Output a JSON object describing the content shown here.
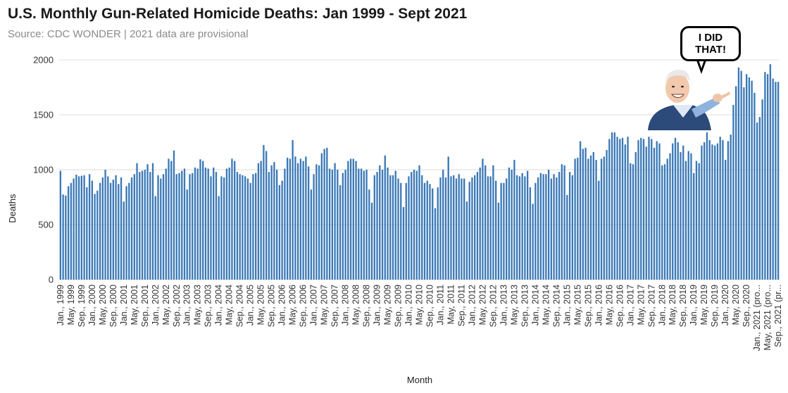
{
  "title": "U.S. Monthly Gun-Related Homicide Deaths: Jan 1999 - Sept 2021",
  "subtitle": "Source: CDC WONDER | 2021 data are provisional",
  "sticker": {
    "text_line1": "I DID",
    "text_line2": "THAT!",
    "icon": "pointing-person-sticker"
  },
  "colors": {
    "bar": "#3a78b6",
    "grid": "#dcdcdc",
    "title": "#1a1a1a",
    "subtitle": "#8a8a8a"
  },
  "chart_data": {
    "type": "bar",
    "title": "U.S. Monthly Gun-Related Homicide Deaths: Jan 1999 - Sept 2021",
    "subtitle": "Source: CDC WONDER | 2021 data are provisional",
    "xlabel": "Month",
    "ylabel": "Deaths",
    "ylim": [
      0,
      2000
    ],
    "yticks": [
      0,
      500,
      1000,
      1500,
      2000
    ],
    "grid": true,
    "x_tick_labels": [
      "Jan., 1999",
      "May, 1999",
      "Sep., 1999",
      "Jan., 2000",
      "May, 2000",
      "Sep., 2000",
      "Jan., 2001",
      "May, 2001",
      "Sep., 2001",
      "Jan., 2002",
      "May, 2002",
      "Sep., 2002",
      "Jan., 2003",
      "May, 2003",
      "Sep., 2003",
      "Jan., 2004",
      "May, 2004",
      "Sep., 2004",
      "Jan., 2005",
      "May, 2005",
      "Sep., 2005",
      "Jan., 2006",
      "May, 2006",
      "Sep., 2006",
      "Jan., 2007",
      "May, 2007",
      "Sep., 2007",
      "Jan., 2008",
      "May, 2008",
      "Sep., 2008",
      "Jan., 2009",
      "May, 2009",
      "Sep., 2009",
      "Jan., 2010",
      "May, 2010",
      "Sep., 2010",
      "Jan., 2011",
      "May, 2011",
      "Sep., 2011",
      "Jan., 2012",
      "May, 2012",
      "Sep., 2012",
      "Jan., 2013",
      "May, 2013",
      "Sep., 2013",
      "Jan., 2014",
      "May, 2014",
      "Sep., 2014",
      "Jan., 2015",
      "May, 2015",
      "Sep., 2015",
      "Jan., 2016",
      "May, 2016",
      "Sep., 2016",
      "Jan., 2017",
      "May, 2017",
      "Sep., 2017",
      "Jan., 2018",
      "May, 2018",
      "Sep., 2018",
      "Jan., 2019",
      "May, 2019",
      "Sep., 2019",
      "Jan., 2020",
      "May, 2020",
      "Sep., 2020",
      "Jan., 2021 (pro...",
      "May, 2021 (pro...",
      "Sep., 2021 (pr..."
    ],
    "start_month": "Jan., 1999",
    "end_month": "Sep., 2021 (provisional)",
    "values": [
      990,
      775,
      765,
      850,
      880,
      920,
      955,
      940,
      945,
      950,
      840,
      960,
      900,
      780,
      810,
      880,
      930,
      1000,
      940,
      880,
      910,
      950,
      870,
      930,
      710,
      850,
      880,
      930,
      960,
      1060,
      980,
      990,
      1000,
      1050,
      980,
      1060,
      760,
      950,
      920,
      960,
      1010,
      1100,
      1080,
      1175,
      960,
      970,
      990,
      1010,
      820,
      960,
      970,
      1020,
      1010,
      1095,
      1080,
      1020,
      1010,
      940,
      1020,
      980,
      760,
      940,
      930,
      1010,
      1020,
      1100,
      1080,
      980,
      960,
      950,
      940,
      920,
      880,
      960,
      970,
      1060,
      1080,
      1225,
      1170,
      980,
      1040,
      1070,
      1000,
      860,
      900,
      1010,
      1110,
      1100,
      1270,
      1120,
      1060,
      1100,
      1080,
      1120,
      1030,
      820,
      960,
      1050,
      1040,
      1150,
      1190,
      1200,
      1010,
      1000,
      1060,
      1000,
      860,
      970,
      1000,
      1080,
      1100,
      1100,
      1080,
      1010,
      1010,
      990,
      1000,
      820,
      700,
      950,
      980,
      1040,
      1000,
      1130,
      1020,
      950,
      950,
      990,
      920,
      880,
      660,
      880,
      940,
      980,
      1000,
      990,
      1040,
      950,
      880,
      900,
      870,
      830,
      650,
      840,
      930,
      1000,
      930,
      1120,
      940,
      950,
      920,
      960,
      920,
      920,
      710,
      890,
      930,
      950,
      980,
      1020,
      1100,
      1040,
      940,
      940,
      1040,
      900,
      700,
      880,
      880,
      920,
      1020,
      1000,
      1090,
      950,
      940,
      970,
      940,
      990,
      840,
      690,
      880,
      930,
      970,
      960,
      960,
      1000,
      920,
      960,
      930,
      980,
      1050,
      1040,
      770,
      980,
      950,
      1100,
      1110,
      1260,
      1190,
      1200,
      1100,
      1130,
      1160,
      1090,
      900,
      1100,
      1120,
      1180,
      1280,
      1340,
      1340,
      1300,
      1280,
      1290,
      1230,
      1300,
      1060,
      1050,
      1160,
      1270,
      1290,
      1280,
      1210,
      1300,
      1280,
      1200,
      1260,
      1240,
      1040,
      1050,
      1100,
      1150,
      1240,
      1290,
      1250,
      1160,
      1220,
      1080,
      1170,
      1150,
      970,
      1080,
      1060,
      1220,
      1250,
      1340,
      1270,
      1230,
      1220,
      1240,
      1300,
      1270,
      1090,
      1260,
      1320,
      1590,
      1760,
      1930,
      1900,
      1750,
      1870,
      1840,
      1810,
      1700,
      1430,
      1480,
      1640,
      1890,
      1870,
      1960,
      1830,
      1800,
      1800
    ]
  }
}
